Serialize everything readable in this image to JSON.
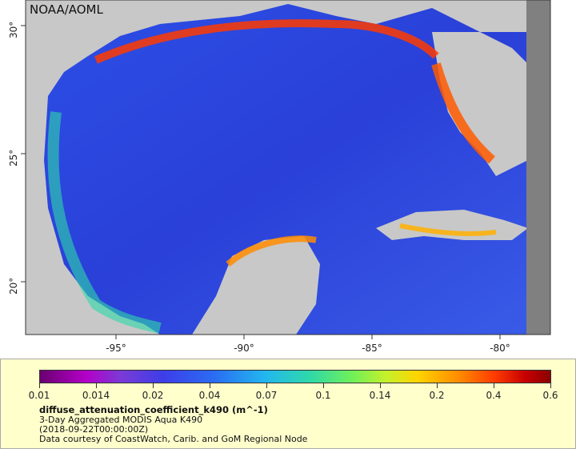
{
  "map": {
    "credit": "NOAA/AOML",
    "x_ticks": [
      "-95°",
      "-90°",
      "-85°",
      "-80°"
    ],
    "y_ticks": [
      "30°",
      "25°",
      "20°"
    ]
  },
  "legend": {
    "colorbar_ticks": [
      "0.01",
      "0.014",
      "0.02",
      "0.04",
      "0.07",
      "0.1",
      "0.14",
      "0.2",
      "0.4",
      "0.6"
    ],
    "variable": "diffuse_attenuation_coefficient_k490 (m^-1)",
    "dataset": "3-Day Aggregated MODIS Aqua K490",
    "time": "(2018-09-22T00:00:00Z)",
    "courtesy": "Data courtesy of CoastWatch, Carib. and GoM Regional Node"
  },
  "colors": {
    "land": "#c8c8c8",
    "no_data": "#808080",
    "panel_bg": "#ffffcc"
  }
}
